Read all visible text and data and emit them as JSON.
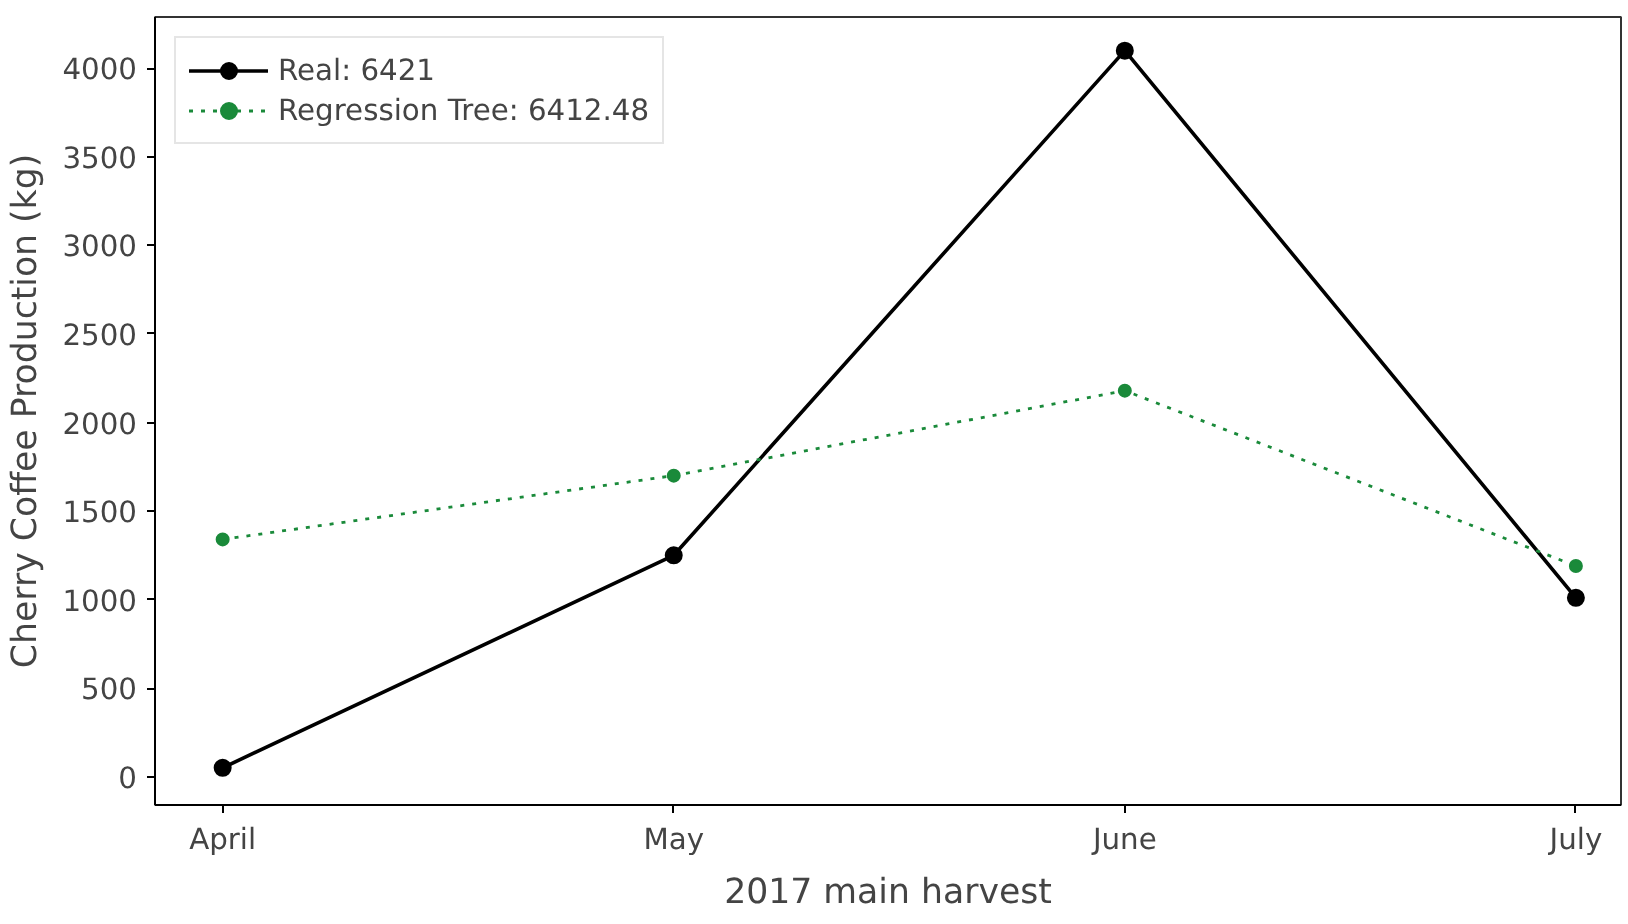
{
  "chart_data": {
    "type": "line",
    "xlabel": "2017 main harvest",
    "ylabel": "Cherry Coffee Production (kg)",
    "categories": [
      "April",
      "May",
      "June",
      "July"
    ],
    "series": [
      {
        "name": "Real: 6421",
        "color": "#000000",
        "values": [
          50,
          1250,
          4100,
          1010
        ],
        "marker": "circle",
        "line_style": "solid"
      },
      {
        "name": "Regression Tree: 6412.48",
        "color": "#1a8a3a",
        "values": [
          1340,
          1700,
          2180,
          1190
        ],
        "marker": "circle",
        "line_style": "dotted"
      }
    ],
    "ylim": [
      -160,
      4290
    ],
    "yticks": [
      0,
      500,
      1000,
      1500,
      2000,
      2500,
      3000,
      3500,
      4000
    ],
    "grid": false,
    "legend": "top left"
  }
}
